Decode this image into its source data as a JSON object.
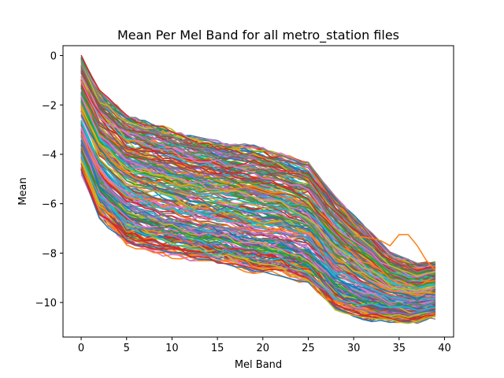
{
  "chart_data": {
    "type": "line",
    "title": "Mean Per Mel Band for all metro_station files",
    "xlabel": "Mel Band",
    "ylabel": "Mean",
    "xlim": [
      -2,
      41
    ],
    "ylim": [
      -11.4,
      0.4
    ],
    "xticks": [
      0,
      5,
      10,
      15,
      20,
      25,
      30,
      35,
      40
    ],
    "yticks": [
      0,
      -2,
      -4,
      -6,
      -8,
      -10
    ],
    "grid": false,
    "legend": "none",
    "series_count": 260,
    "palette": [
      "#1f77b4",
      "#ff7f0e",
      "#2ca02c",
      "#d62728",
      "#9467bd",
      "#8c564b",
      "#e377c2",
      "#7f7f7f",
      "#bcbd22",
      "#17becf"
    ],
    "x": [
      0,
      2,
      5,
      8,
      12,
      16,
      19,
      22,
      25,
      28,
      31,
      34,
      37,
      39
    ],
    "envelope_upper": [
      0.0,
      -1.4,
      -2.4,
      -2.8,
      -3.3,
      -3.6,
      -3.7,
      -4.0,
      -4.4,
      -5.8,
      -6.9,
      -8.0,
      -8.5,
      -8.4
    ],
    "envelope_lower": [
      -4.8,
      -6.6,
      -7.7,
      -8.0,
      -8.3,
      -8.5,
      -8.9,
      -9.0,
      -9.4,
      -10.4,
      -10.7,
      -10.8,
      -10.8,
      -10.6
    ],
    "highlight_series": {
      "color": "#ff7f0e",
      "x": [
        30,
        32,
        33,
        34,
        35,
        36,
        37,
        38,
        39
      ],
      "y": [
        -7.3,
        -7.4,
        -7.5,
        -7.7,
        -7.25,
        -7.25,
        -7.7,
        -8.3,
        -8.7
      ]
    }
  }
}
